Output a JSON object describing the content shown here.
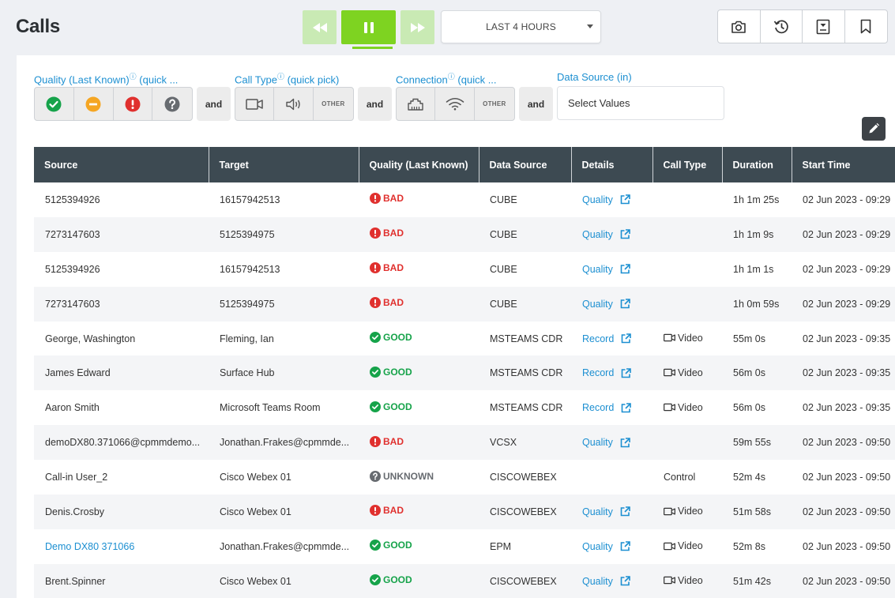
{
  "header": {
    "title": "Calls"
  },
  "time_range": {
    "label": "LAST 4 HOURS"
  },
  "filters": {
    "quality_label": "Quality (Last Known)",
    "quality_suffix": " (quick ...",
    "call_type_label": "Call Type",
    "call_type_suffix": " (quick pick)",
    "connection_label": "Connection",
    "connection_suffix": " (quick ...",
    "data_source_label": "Data Source (in)",
    "data_source_placeholder": "Select Values",
    "and_label": "and",
    "other_label": "OTHER",
    "info_glyph": "ⓘ"
  },
  "colors": {
    "good": "#16a34a",
    "bad": "#e0302e",
    "warn": "#f5a623",
    "unknown": "#676b70",
    "accent": "#7ed321",
    "link": "#1c8fd1",
    "header_bg": "#3d4a52"
  },
  "table": {
    "columns": [
      "Source",
      "Target",
      "Quality (Last Known)",
      "Data Source",
      "Details",
      "Call Type",
      "Duration",
      "Start Time"
    ],
    "rows": [
      {
        "source": "5125394926",
        "source_link": false,
        "target": "16157942513",
        "quality": "BAD",
        "data_source": "CUBE",
        "details": "Quality",
        "call_type": "",
        "duration": "1h 1m 25s",
        "start": "02 Jun 2023 - 09:29"
      },
      {
        "source": "7273147603",
        "source_link": false,
        "target": "5125394975",
        "quality": "BAD",
        "data_source": "CUBE",
        "details": "Quality",
        "call_type": "",
        "duration": "1h 1m 9s",
        "start": "02 Jun 2023 - 09:29"
      },
      {
        "source": "5125394926",
        "source_link": false,
        "target": "16157942513",
        "quality": "BAD",
        "data_source": "CUBE",
        "details": "Quality",
        "call_type": "",
        "duration": "1h 1m 1s",
        "start": "02 Jun 2023 - 09:29"
      },
      {
        "source": "7273147603",
        "source_link": false,
        "target": "5125394975",
        "quality": "BAD",
        "data_source": "CUBE",
        "details": "Quality",
        "call_type": "",
        "duration": "1h 0m 59s",
        "start": "02 Jun 2023 - 09:29"
      },
      {
        "source": "George, Washington",
        "source_link": false,
        "target": "Fleming, Ian",
        "quality": "GOOD",
        "data_source": "MSTEAMS CDR",
        "details": "Record",
        "call_type": "Video",
        "duration": "55m 0s",
        "start": "02 Jun 2023 - 09:35"
      },
      {
        "source": "James Edward",
        "source_link": false,
        "target": "Surface Hub",
        "quality": "GOOD",
        "data_source": "MSTEAMS CDR",
        "details": "Record",
        "call_type": "Video",
        "duration": "56m 0s",
        "start": "02 Jun 2023 - 09:35"
      },
      {
        "source": "Aaron Smith",
        "source_link": false,
        "target": "Microsoft Teams Room",
        "quality": "GOOD",
        "data_source": "MSTEAMS CDR",
        "details": "Record",
        "call_type": "Video",
        "duration": "56m 0s",
        "start": "02 Jun 2023 - 09:35"
      },
      {
        "source": "demoDX80.371066@cpmmdemo...",
        "source_link": false,
        "target": "Jonathan.Frakes@cpmmde...",
        "quality": "BAD",
        "data_source": "VCSX",
        "details": "Quality",
        "call_type": "",
        "duration": "59m 55s",
        "start": "02 Jun 2023 - 09:50"
      },
      {
        "source": "Call-in User_2",
        "source_link": false,
        "target": "Cisco Webex 01",
        "quality": "UNKNOWN",
        "data_source": "CISCOWEBEX",
        "details": "",
        "call_type": "Control",
        "duration": "52m 4s",
        "start": "02 Jun 2023 - 09:50"
      },
      {
        "source": "Denis.Crosby",
        "source_link": false,
        "target": "Cisco Webex 01",
        "quality": "BAD",
        "data_source": "CISCOWEBEX",
        "details": "Quality",
        "call_type": "Video",
        "duration": "51m 58s",
        "start": "02 Jun 2023 - 09:50"
      },
      {
        "source": "Demo DX80 371066",
        "source_link": true,
        "target": "Jonathan.Frakes@cpmmde...",
        "quality": "GOOD",
        "data_source": "EPM",
        "details": "Quality",
        "call_type": "Video",
        "duration": "52m 8s",
        "start": "02 Jun 2023 - 09:50"
      },
      {
        "source": "Brent.Spinner",
        "source_link": false,
        "target": "Cisco Webex 01",
        "quality": "GOOD",
        "data_source": "CISCOWEBEX",
        "details": "Quality",
        "call_type": "Video",
        "duration": "51m 42s",
        "start": "02 Jun 2023 - 09:50"
      }
    ]
  }
}
